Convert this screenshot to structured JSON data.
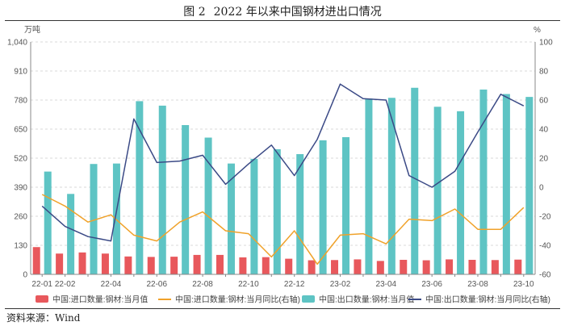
{
  "header": {
    "figure_no": "图 2",
    "title": "2022 年以来中国钢材进出口情况"
  },
  "footer": {
    "source": "资料来源：Wind"
  },
  "chart_data": {
    "type": "bar",
    "title": "2022 年以来中国钢材进出口情况",
    "left_unit": "万吨",
    "right_unit": "%",
    "ylim_left": [
      0,
      1040
    ],
    "ylim_right": [
      -60,
      100
    ],
    "left_ticks": [
      0,
      130,
      260,
      390,
      520,
      650,
      780,
      910,
      1040
    ],
    "left_tick_labels": [
      "0",
      "130",
      "260",
      "390",
      "520",
      "650",
      "780",
      "910",
      "1,040"
    ],
    "right_ticks": [
      -60,
      -40,
      -20,
      0,
      20,
      40,
      60,
      80,
      100
    ],
    "right_tick_labels": [
      "-60",
      "-40",
      "-20",
      "0",
      "20",
      "40",
      "60",
      "80",
      "100"
    ],
    "categories": [
      "22-01",
      "22-02",
      "22-03",
      "22-04",
      "22-05",
      "22-06",
      "22-07",
      "22-08",
      "22-09",
      "22-10",
      "22-11",
      "22-12",
      "23-01",
      "23-02",
      "23-03",
      "23-04",
      "23-05",
      "23-06",
      "23-07",
      "23-08",
      "23-09",
      "23-10"
    ],
    "x_tick_labels": [
      "22-01",
      "22-02",
      "",
      "22-04",
      "",
      "22-06",
      "",
      "22-08",
      "",
      "22-10",
      "",
      "22-12",
      "",
      "23-02",
      "",
      "23-04",
      "",
      "23-06",
      "",
      "23-08",
      "",
      "23-10"
    ],
    "series": [
      {
        "name": "中国:进口数量:钢材:当月值",
        "type": "bar",
        "axis": "left",
        "color": "#e8585c",
        "values": [
          122,
          93,
          98,
          93,
          80,
          78,
          79,
          87,
          87,
          76,
          77,
          70,
          63,
          64,
          67,
          60,
          65,
          63,
          67,
          65,
          64,
          66
        ]
      },
      {
        "name": "中国:进口数量:钢材:当月同比(右轴)",
        "type": "line",
        "axis": "right",
        "color": "#f0a22a",
        "values": [
          -5,
          -13,
          -24,
          -19,
          -33,
          -37,
          -24,
          -17,
          -30,
          -32,
          -48,
          -30,
          -53,
          -33,
          -32,
          -39,
          -22,
          -23,
          -15,
          -29,
          -29,
          -14
        ]
      },
      {
        "name": "中国:出口数量:钢材:当月值",
        "type": "bar",
        "axis": "left",
        "color": "#5ec4c4",
        "values": [
          460,
          360,
          494,
          496,
          775,
          755,
          668,
          612,
          496,
          517,
          560,
          538,
          600,
          614,
          787,
          790,
          835,
          750,
          730,
          827,
          807,
          794
        ]
      },
      {
        "name": "中国:出口数量:钢材:当月同比(右轴)",
        "type": "line",
        "axis": "right",
        "color": "#3b4a86",
        "values": [
          -13,
          -27,
          -34,
          -37,
          47,
          17,
          18,
          22,
          2,
          16,
          29,
          8,
          33,
          71,
          61,
          60,
          8,
          0,
          11,
          38,
          64,
          56
        ]
      }
    ],
    "legend_position": "bottom",
    "grid": true
  }
}
